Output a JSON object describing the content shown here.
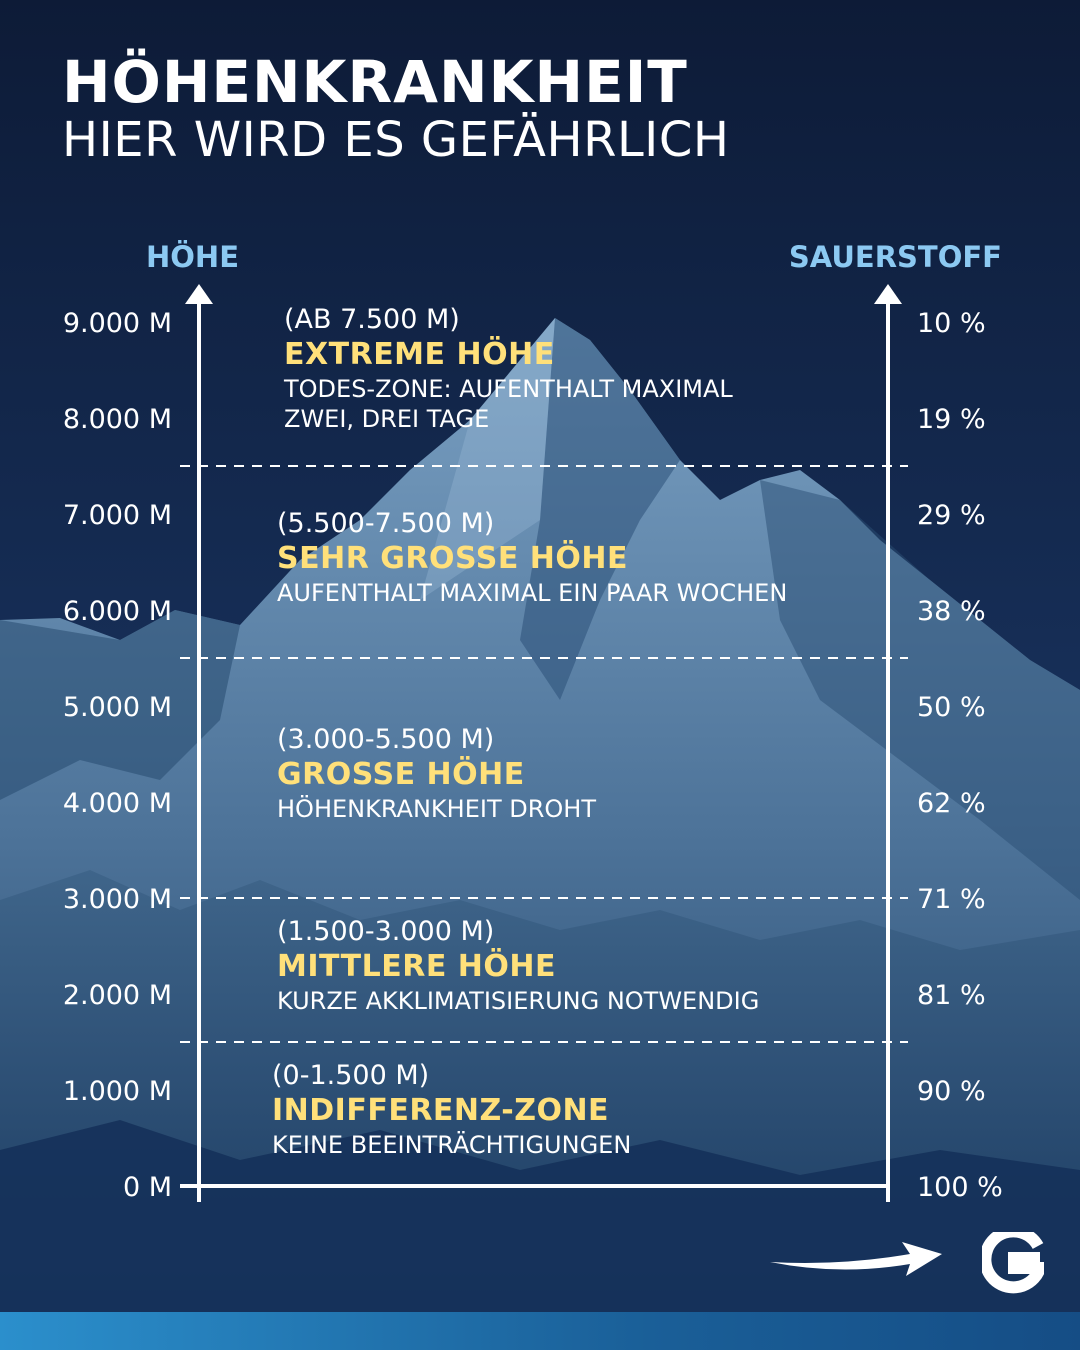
{
  "header": {
    "title": "HÖHENKRANKHEIT",
    "subtitle": "HIER WIRD ES GEFÄHRLICH"
  },
  "colors": {
    "background_top": "#0f1e3c",
    "background_bottom": "#1c3d62",
    "mountain": "#5f86ab",
    "axis_title": "#8cc9f2",
    "zone_name": "#ffe07a",
    "footer_bar": "#2b8fcc"
  },
  "chart_data": {
    "type": "table",
    "y_axis_left": {
      "label": "HÖHE",
      "range": [
        0,
        9000
      ],
      "ticks": [
        {
          "value": 0,
          "label": "0 M"
        },
        {
          "value": 1000,
          "label": "1.000 M"
        },
        {
          "value": 2000,
          "label": "2.000 M"
        },
        {
          "value": 3000,
          "label": "3.000 M"
        },
        {
          "value": 4000,
          "label": "4.000 M"
        },
        {
          "value": 5000,
          "label": "5.000 M"
        },
        {
          "value": 6000,
          "label": "6.000 M"
        },
        {
          "value": 7000,
          "label": "7.000 M"
        },
        {
          "value": 8000,
          "label": "8.000 M"
        },
        {
          "value": 9000,
          "label": "9.000 M"
        }
      ]
    },
    "y_axis_right": {
      "label": "SAUERSTOFF",
      "ticks": [
        {
          "value": 0,
          "label": "100 %"
        },
        {
          "value": 1000,
          "label": "90 %"
        },
        {
          "value": 2000,
          "label": "81 %"
        },
        {
          "value": 3000,
          "label": "71 %"
        },
        {
          "value": 4000,
          "label": "62 %"
        },
        {
          "value": 5000,
          "label": "50 %"
        },
        {
          "value": 6000,
          "label": "38 %"
        },
        {
          "value": 7000,
          "label": "29 %"
        },
        {
          "value": 8000,
          "label": "19 %"
        },
        {
          "value": 9000,
          "label": "10 %"
        }
      ]
    },
    "zone_boundaries": [
      1500,
      3000,
      5500,
      7500
    ],
    "zones": [
      {
        "from": 7500,
        "to": 9000,
        "range": "(AB 7.500 M)",
        "name": "EXTREME HÖHE",
        "description": "TODES-ZONE: AUFENTHALT MAXIMAL ZWEI, DREI TAGE"
      },
      {
        "from": 5500,
        "to": 7500,
        "range": "(5.500-7.500 M)",
        "name": "SEHR GROSSE HÖHE",
        "description": "AUFENTHALT MAXIMAL EIN PAAR WOCHEN"
      },
      {
        "from": 3000,
        "to": 5500,
        "range": "(3.000-5.500 M)",
        "name": "GROSSE HÖHE",
        "description": "HÖHENKRANKHEIT DROHT"
      },
      {
        "from": 1500,
        "to": 3000,
        "range": "(1.500-3.000 M)",
        "name": "MITTLERE HÖHE",
        "description": "KURZE AKKLIMATISIERUNG NOTWENDIG"
      },
      {
        "from": 0,
        "to": 1500,
        "range": "(0-1.500 M)",
        "name": "INDIFFERENZ-ZONE",
        "description": "KEINE BEEINTRÄCHTIGUNGEN"
      }
    ]
  },
  "logo": {
    "letter": "G",
    "icon": "arrow-logo-icon"
  }
}
